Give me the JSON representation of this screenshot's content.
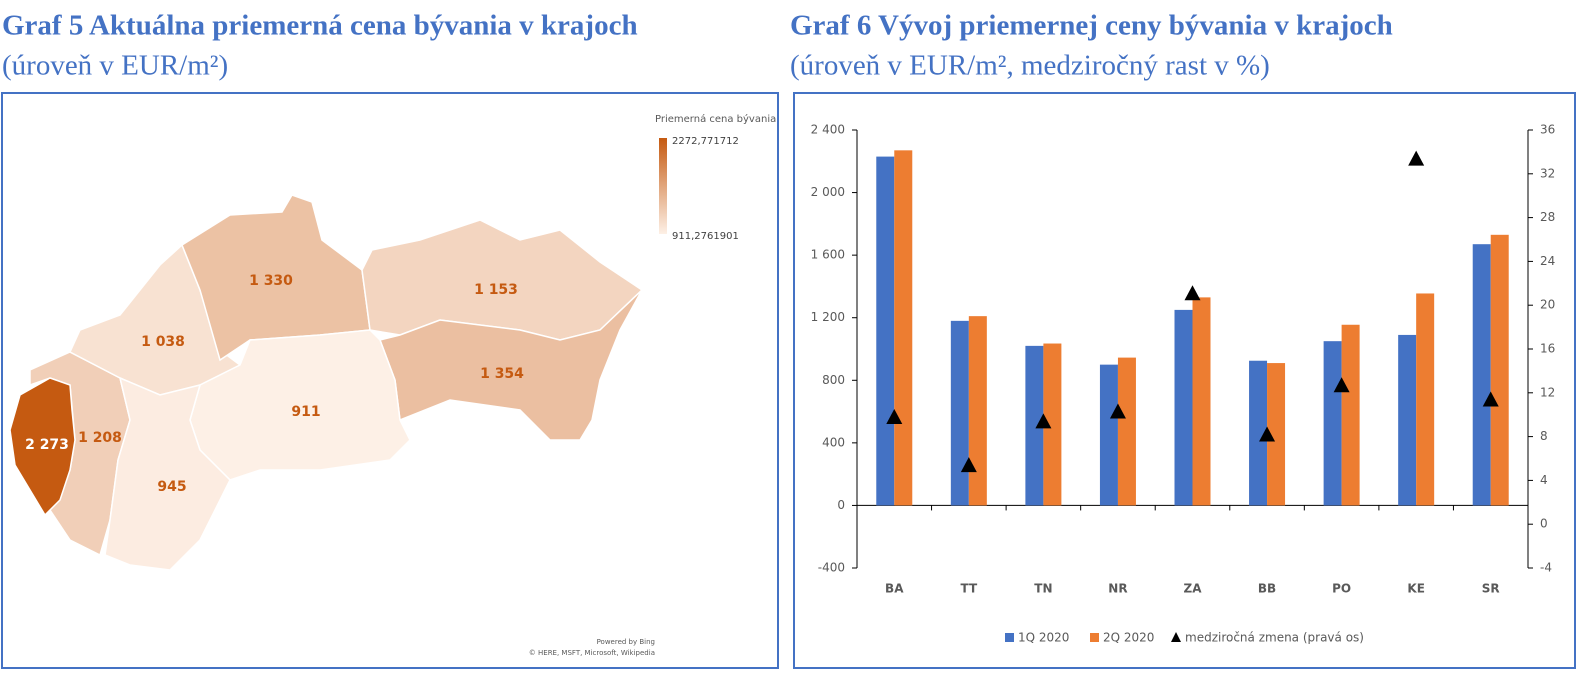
{
  "chart_data": [
    {
      "type": "choropleth",
      "title": "Graf 5 Aktuálna priemerná cena bývania v krajoch",
      "subtitle": "(úroveň v EUR/m²)",
      "values": [
        2273,
        1208,
        1038,
        1330,
        1153,
        1354,
        911,
        945
      ],
      "value_labels": [
        "2 273",
        "1 208",
        "1 038",
        "1 330",
        "1 153",
        "1 354",
        "911",
        "945"
      ],
      "color_low": "#fdf0e6",
      "color_high": "#c55a11",
      "legend": {
        "title": "Priemerná cena bývania",
        "max": {
          "value": 2272.771712,
          "label": "2272,771712"
        },
        "min": {
          "value": 911.2761901,
          "label": "911,2761901"
        }
      },
      "attribution": [
        "Powered by Bing",
        "© HERE, MSFT, Microsoft, Wikipedia"
      ]
    },
    {
      "type": "bar",
      "title": "Graf 6 Vývoj priemernej ceny bývania v krajoch",
      "subtitle": "(úroveň v EUR/m², medziročný rast v %)",
      "categories": [
        "BA",
        "TT",
        "TN",
        "NR",
        "ZA",
        "BB",
        "PO",
        "KE",
        "SR"
      ],
      "series": [
        {
          "name": "1Q 2020",
          "color": "#4472c4",
          "values": [
            2230,
            1180,
            1020,
            900,
            1250,
            925,
            1050,
            1090,
            1670
          ]
        },
        {
          "name": "2Q 2020",
          "color": "#ed7d31",
          "values": [
            2270,
            1210,
            1035,
            945,
            1330,
            910,
            1155,
            1355,
            1730
          ]
        },
        {
          "name": "medziročná zmena (pravá os)",
          "color": "#000000",
          "axis": "y2",
          "marker": "triangle",
          "values": [
            9.7,
            5.3,
            9.3,
            10.2,
            21.0,
            8.1,
            12.6,
            33.3,
            11.3
          ]
        }
      ],
      "ylim": [
        -400,
        2400
      ],
      "yticks": [
        -400,
        0,
        400,
        800,
        {
          "value": 1200,
          "label": "1 200"
        },
        {
          "value": 1600,
          "label": "1 600"
        },
        {
          "value": 2000,
          "label": "2 000"
        },
        {
          "value": 2400,
          "label": "2 400"
        }
      ],
      "y2lim": [
        -4,
        36
      ],
      "y2ticks": [
        -4,
        0,
        4,
        8,
        12,
        16,
        20,
        24,
        28,
        32,
        36
      ],
      "legend": "bottom"
    }
  ]
}
